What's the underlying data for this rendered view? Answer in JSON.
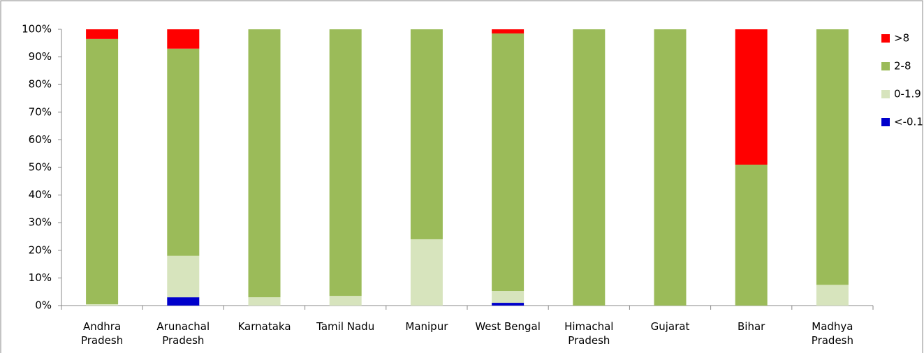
{
  "chart_data": {
    "type": "stacked_bar_percent",
    "categories": [
      "Andhra Pradesh",
      "Arunachal Pradesh",
      "Karnataka",
      "Tamil Nadu",
      "Manipur",
      "West Bengal",
      "Himachal Pradesh",
      "Gujarat",
      "Bihar",
      "Madhya Pradesh"
    ],
    "series": [
      {
        "name": "<-0.1",
        "color": "#0000cc",
        "values": [
          0,
          3,
          0,
          0,
          0,
          1,
          0,
          0,
          0,
          0
        ]
      },
      {
        "name": "0-1.9",
        "color": "#d7e4bd",
        "values": [
          0.5,
          15,
          3,
          3.5,
          24,
          4.3,
          0,
          0,
          0,
          7.5
        ]
      },
      {
        "name": "2-8",
        "color": "#9bbb59",
        "values": [
          96,
          75,
          97,
          96.5,
          76,
          93.2,
          100,
          100,
          51,
          92.5
        ]
      },
      {
        "name": ">8",
        "color": "#ff0000",
        "values": [
          3.5,
          7,
          0,
          0,
          0,
          1.5,
          0,
          0,
          49,
          0
        ]
      }
    ],
    "ylim": [
      0,
      100
    ],
    "yticks": [
      {
        "value": 0,
        "label": "0%"
      },
      {
        "value": 10,
        "label": "10%"
      },
      {
        "value": 20,
        "label": "20%"
      },
      {
        "value": 30,
        "label": "30%"
      },
      {
        "value": 40,
        "label": "40%"
      },
      {
        "value": 50,
        "label": "50%"
      },
      {
        "value": 60,
        "label": "60%"
      },
      {
        "value": 70,
        "label": "70%"
      },
      {
        "value": 80,
        "label": "80%"
      },
      {
        "value": 90,
        "label": "90%"
      },
      {
        "value": 100,
        "label": "100%"
      }
    ],
    "legend": "right"
  }
}
